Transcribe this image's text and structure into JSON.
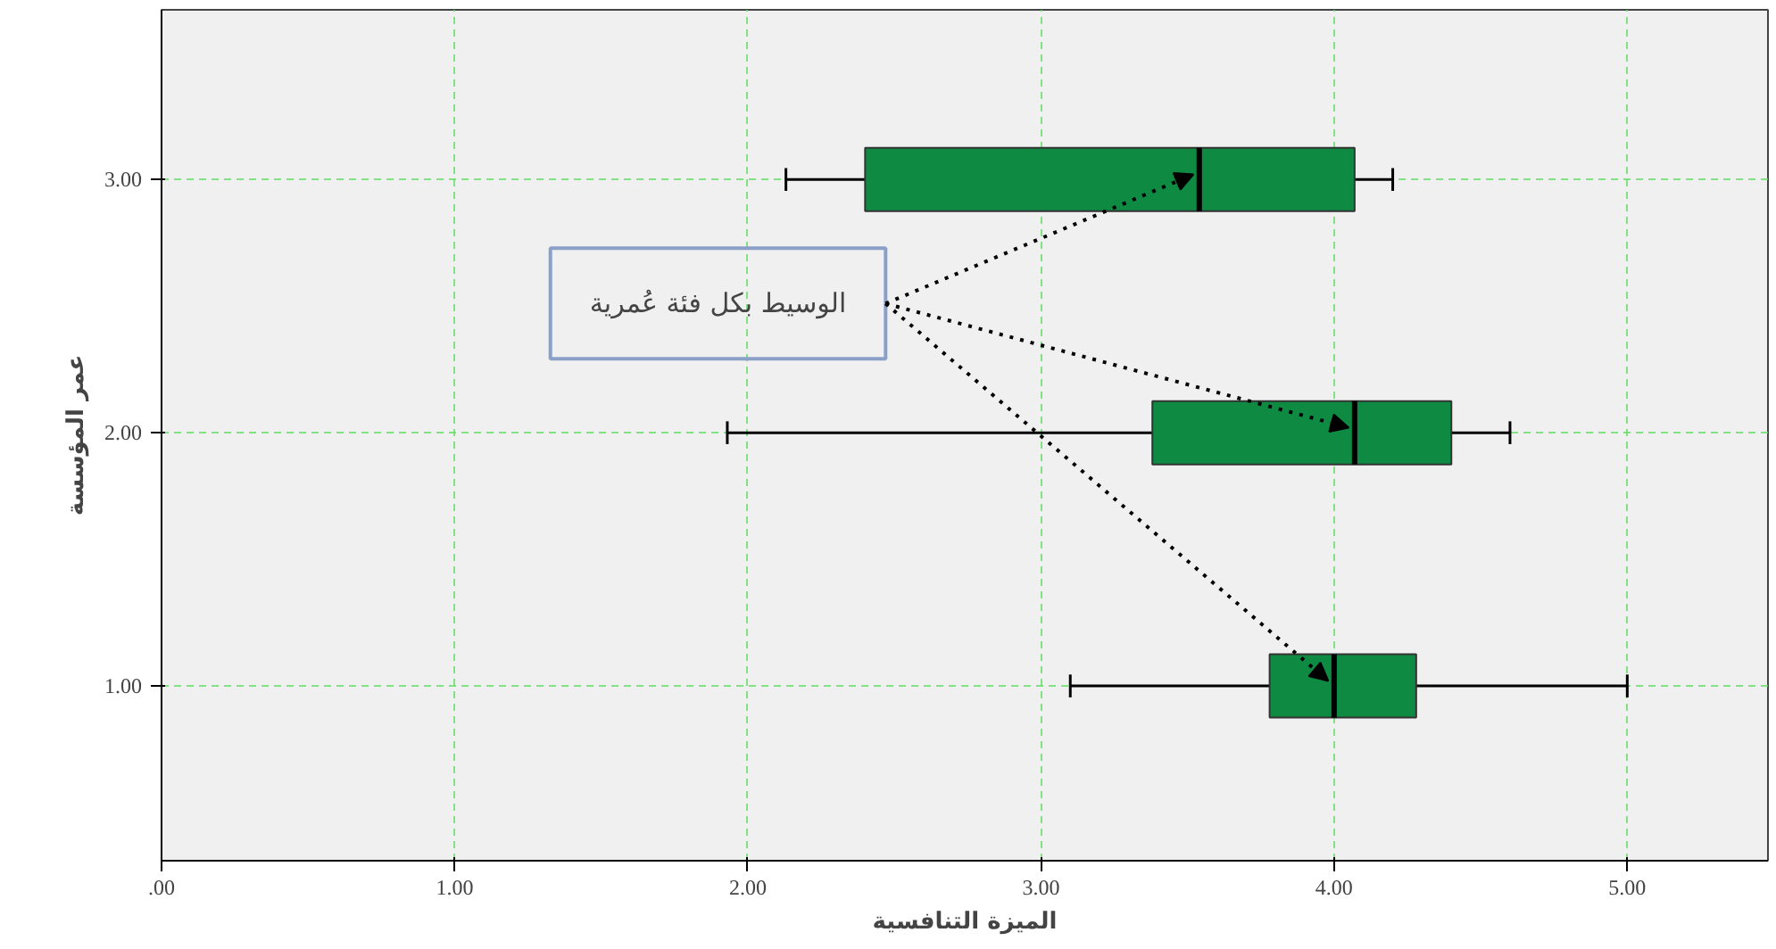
{
  "chart_data": {
    "type": "box",
    "orientation": "horizontal",
    "xlabel": "الميزة التنافسية",
    "ylabel": "عمر المؤسسة",
    "categories": [
      "3.00",
      "2.00",
      "1.00"
    ],
    "boxes": [
      {
        "low": 2.13,
        "q1": 2.4,
        "median": 3.54,
        "q3": 4.07,
        "high": 4.2
      },
      {
        "low": 1.93,
        "q1": 3.38,
        "median": 4.07,
        "q3": 4.4,
        "high": 4.6
      },
      {
        "low": 3.1,
        "q1": 3.78,
        "median": 4.0,
        "q3": 4.28,
        "high": 5.0
      }
    ],
    "color": "#0e8a43",
    "xlim": [
      0,
      5.48
    ],
    "xticks": [
      {
        "value": 0,
        "label": ".00"
      },
      {
        "value": 1,
        "label": "1.00"
      },
      {
        "value": 2,
        "label": "2.00"
      },
      {
        "value": 3,
        "label": "3.00"
      },
      {
        "value": 4,
        "label": "4.00"
      },
      {
        "value": 5,
        "label": "5.00"
      }
    ],
    "grid": true,
    "annotations": [
      "الوسيط بكل فئة عُمرية"
    ]
  }
}
